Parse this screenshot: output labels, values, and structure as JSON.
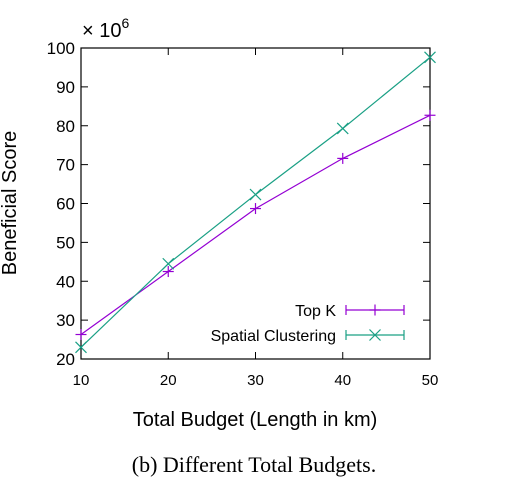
{
  "chart_data": {
    "type": "line",
    "xlabel": "Total Budget (Length in km)",
    "ylabel": "Beneficial Score",
    "y_multiplier_base": "× 10",
    "y_multiplier_exp": "6",
    "xlim": [
      10,
      50
    ],
    "ylim": [
      20,
      100
    ],
    "x_ticks": [
      10,
      20,
      30,
      40,
      50
    ],
    "y_ticks": [
      20,
      30,
      40,
      50,
      60,
      70,
      80,
      90,
      100
    ],
    "grid": false,
    "legend_position": "bottom-right",
    "x": [
      10,
      20,
      30,
      40,
      50
    ],
    "series": [
      {
        "name": "Top K",
        "marker": "plus",
        "color": "#9400d3",
        "values": [
          26.3,
          42.5,
          58.7,
          71.6,
          82.7
        ]
      },
      {
        "name": "Spatial Clustering",
        "marker": "x",
        "color": "#1aa085",
        "values": [
          23.0,
          44.5,
          62.3,
          79.3,
          97.6
        ]
      }
    ]
  },
  "caption": "(b) Different Total Budgets."
}
